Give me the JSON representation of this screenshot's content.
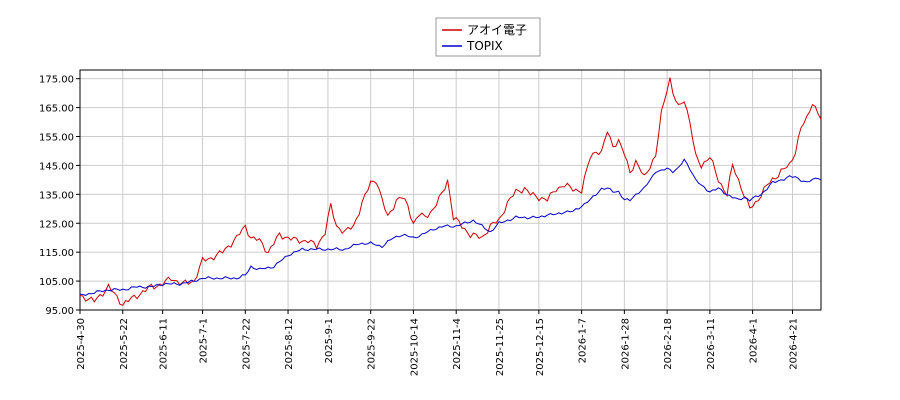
{
  "chart_data": {
    "type": "line",
    "legend_position": "top-center",
    "grid": true,
    "ylim": [
      95,
      178
    ],
    "yticks": [
      "95.00",
      "105.00",
      "115.00",
      "125.00",
      "135.00",
      "145.00",
      "155.00",
      "165.00",
      "175.00"
    ],
    "ytick_values": [
      95,
      105,
      115,
      125,
      135,
      145,
      155,
      165,
      175
    ],
    "xticks": [
      "2025-4-30",
      "2025-5-22",
      "2025-6-11",
      "2025-7-1",
      "2025-7-22",
      "2025-8-12",
      "2025-9-1",
      "2025-9-22",
      "2025-10-14",
      "2025-11-4",
      "2025-11-25",
      "2025-12-15",
      "2026-1-7",
      "2026-1-28",
      "2026-2-18",
      "2026-3-11",
      "2026-4-1",
      "2026-4-21"
    ],
    "xtick_index": [
      0,
      15,
      29,
      43,
      58,
      73,
      87,
      102,
      117,
      132,
      147,
      161,
      176,
      191,
      206,
      221,
      236,
      250
    ],
    "n_points": 261,
    "series": [
      {
        "name": "アオイ電子",
        "color": "#cc0000",
        "anchors": [
          [
            0,
            100
          ],
          [
            5,
            98
          ],
          [
            10,
            103
          ],
          [
            15,
            97
          ],
          [
            20,
            100
          ],
          [
            25,
            103
          ],
          [
            29,
            104
          ],
          [
            32,
            106
          ],
          [
            36,
            104
          ],
          [
            40,
            105
          ],
          [
            43,
            112
          ],
          [
            46,
            113
          ],
          [
            50,
            115
          ],
          [
            55,
            120
          ],
          [
            58,
            124
          ],
          [
            60,
            120
          ],
          [
            63,
            119
          ],
          [
            66,
            115
          ],
          [
            68,
            118
          ],
          [
            70,
            121
          ],
          [
            73,
            120
          ],
          [
            76,
            119
          ],
          [
            80,
            119
          ],
          [
            83,
            117
          ],
          [
            86,
            122
          ],
          [
            88,
            131
          ],
          [
            90,
            124
          ],
          [
            93,
            122
          ],
          [
            96,
            124
          ],
          [
            99,
            132
          ],
          [
            102,
            139
          ],
          [
            104,
            140
          ],
          [
            106,
            133
          ],
          [
            108,
            127
          ],
          [
            111,
            133
          ],
          [
            113,
            134
          ],
          [
            115,
            131
          ],
          [
            117,
            125
          ],
          [
            119,
            128
          ],
          [
            121,
            127
          ],
          [
            124,
            130
          ],
          [
            127,
            135
          ],
          [
            129,
            140
          ],
          [
            131,
            127
          ],
          [
            134,
            124
          ],
          [
            137,
            121
          ],
          [
            141,
            120
          ],
          [
            144,
            124
          ],
          [
            147,
            126
          ],
          [
            150,
            132
          ],
          [
            153,
            136
          ],
          [
            156,
            137
          ],
          [
            158,
            135
          ],
          [
            161,
            134
          ],
          [
            164,
            133
          ],
          [
            167,
            137
          ],
          [
            170,
            138
          ],
          [
            173,
            137
          ],
          [
            176,
            136
          ],
          [
            179,
            148
          ],
          [
            181,
            150
          ],
          [
            183,
            149
          ],
          [
            185,
            157
          ],
          [
            187,
            152
          ],
          [
            189,
            153
          ],
          [
            191,
            149
          ],
          [
            193,
            143
          ],
          [
            195,
            146
          ],
          [
            198,
            141
          ],
          [
            200,
            145
          ],
          [
            202,
            148
          ],
          [
            204,
            163
          ],
          [
            206,
            172
          ],
          [
            207,
            175
          ],
          [
            208,
            170
          ],
          [
            210,
            165
          ],
          [
            212,
            168
          ],
          [
            214,
            160
          ],
          [
            216,
            148
          ],
          [
            218,
            145
          ],
          [
            221,
            148
          ],
          [
            224,
            140
          ],
          [
            227,
            135
          ],
          [
            229,
            145
          ],
          [
            231,
            140
          ],
          [
            233,
            135
          ],
          [
            235,
            130
          ],
          [
            237,
            132
          ],
          [
            239,
            135
          ],
          [
            241,
            138
          ],
          [
            243,
            140
          ],
          [
            246,
            143
          ],
          [
            249,
            145
          ],
          [
            251,
            150
          ],
          [
            253,
            158
          ],
          [
            255,
            161
          ],
          [
            257,
            167
          ],
          [
            259,
            163
          ],
          [
            260,
            161
          ]
        ]
      },
      {
        "name": "TOPIX",
        "color": "#0000cc",
        "anchors": [
          [
            0,
            100
          ],
          [
            5,
            101
          ],
          [
            10,
            102
          ],
          [
            15,
            102
          ],
          [
            20,
            103
          ],
          [
            25,
            103
          ],
          [
            29,
            104
          ],
          [
            35,
            104
          ],
          [
            40,
            105
          ],
          [
            43,
            106
          ],
          [
            50,
            106
          ],
          [
            55,
            106
          ],
          [
            58,
            107
          ],
          [
            60,
            110
          ],
          [
            63,
            109
          ],
          [
            68,
            110
          ],
          [
            73,
            114
          ],
          [
            78,
            116
          ],
          [
            83,
            116
          ],
          [
            88,
            116
          ],
          [
            93,
            116
          ],
          [
            98,
            118
          ],
          [
            102,
            118
          ],
          [
            106,
            117
          ],
          [
            110,
            120
          ],
          [
            113,
            121
          ],
          [
            117,
            120
          ],
          [
            120,
            121
          ],
          [
            124,
            123
          ],
          [
            128,
            124
          ],
          [
            132,
            124
          ],
          [
            135,
            125
          ],
          [
            138,
            126
          ],
          [
            141,
            124
          ],
          [
            144,
            122
          ],
          [
            147,
            125
          ],
          [
            150,
            126
          ],
          [
            153,
            127
          ],
          [
            156,
            127
          ],
          [
            158,
            127
          ],
          [
            161,
            127
          ],
          [
            164,
            128
          ],
          [
            167,
            128
          ],
          [
            170,
            129
          ],
          [
            173,
            129
          ],
          [
            176,
            131
          ],
          [
            179,
            133
          ],
          [
            181,
            135
          ],
          [
            183,
            137
          ],
          [
            185,
            137
          ],
          [
            187,
            136
          ],
          [
            189,
            136
          ],
          [
            191,
            133
          ],
          [
            193,
            133
          ],
          [
            195,
            135
          ],
          [
            198,
            137
          ],
          [
            200,
            140
          ],
          [
            202,
            143
          ],
          [
            204,
            143
          ],
          [
            206,
            144
          ],
          [
            208,
            143
          ],
          [
            210,
            144
          ],
          [
            212,
            147
          ],
          [
            214,
            144
          ],
          [
            216,
            140
          ],
          [
            218,
            138
          ],
          [
            221,
            136
          ],
          [
            224,
            137
          ],
          [
            227,
            135
          ],
          [
            229,
            134
          ],
          [
            231,
            133
          ],
          [
            233,
            134
          ],
          [
            235,
            133
          ],
          [
            237,
            134
          ],
          [
            239,
            135
          ],
          [
            241,
            137
          ],
          [
            243,
            139
          ],
          [
            246,
            140
          ],
          [
            249,
            141
          ],
          [
            251,
            141
          ],
          [
            253,
            140
          ],
          [
            255,
            139
          ],
          [
            257,
            140
          ],
          [
            259,
            141
          ],
          [
            260,
            140
          ]
        ]
      }
    ]
  }
}
